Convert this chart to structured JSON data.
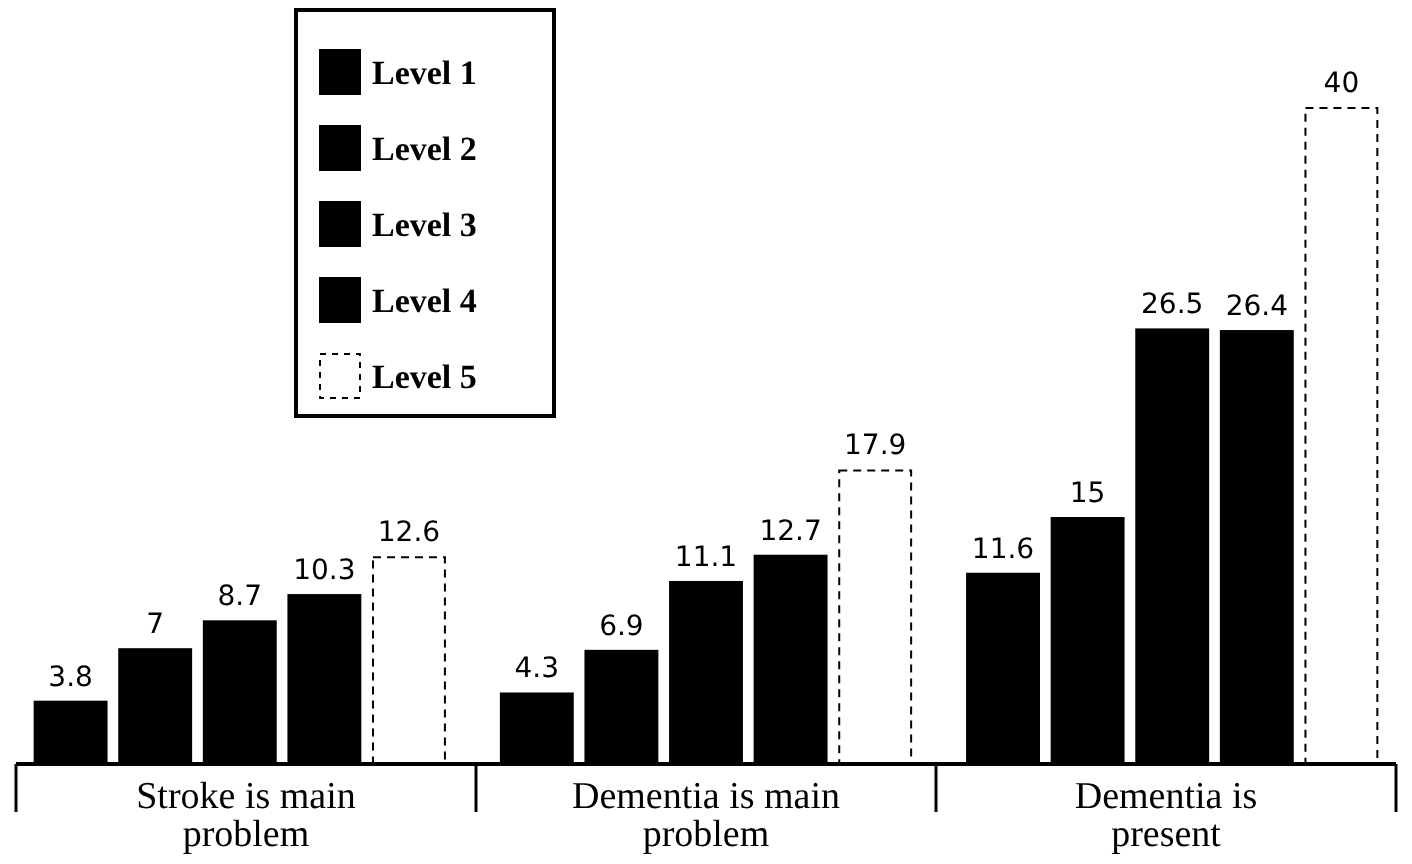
{
  "chart_data": {
    "type": "bar",
    "categories": [
      "Stroke is main problem",
      "Dementia is main problem",
      "Dementia is present"
    ],
    "series": [
      {
        "name": "Level 1",
        "color": "#000000",
        "values": [
          3.8,
          4.3,
          11.6
        ]
      },
      {
        "name": "Level 2",
        "color": "#000000",
        "values": [
          7,
          6.9,
          15
        ]
      },
      {
        "name": "Level 3",
        "color": "#000000",
        "values": [
          8.7,
          11.1,
          26.5
        ]
      },
      {
        "name": "Level 4",
        "color": "#000000",
        "values": [
          10.3,
          12.7,
          26.4
        ]
      },
      {
        "name": "Level 5",
        "color": "#ffffff",
        "values": [
          12.6,
          17.9,
          40
        ],
        "line_style": "dashed"
      }
    ],
    "data_labels": true,
    "legend": "top left"
  }
}
